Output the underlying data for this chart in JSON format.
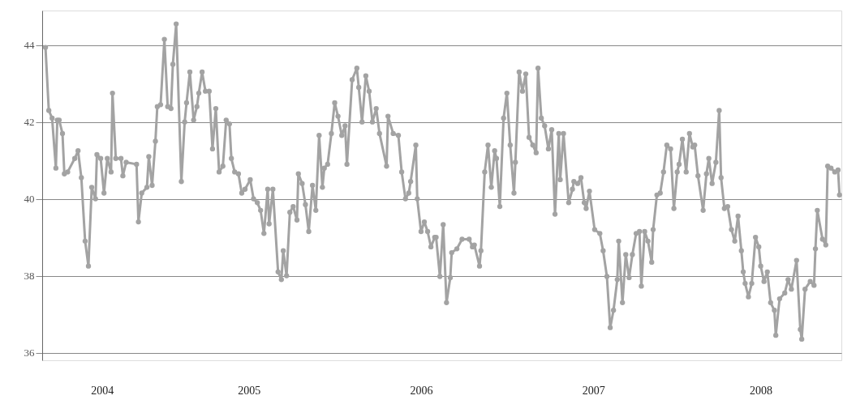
{
  "chart_data": {
    "type": "line",
    "x": [
      "2004-04-28",
      "2004-05-05",
      "2004-05-12",
      "2004-05-20",
      "2004-05-23",
      "2004-05-27",
      "2004-06-03",
      "2004-06-07",
      "2004-06-14",
      "2004-06-29",
      "2004-07-06",
      "2004-07-13",
      "2004-07-21",
      "2004-07-28",
      "2004-08-04",
      "2004-08-12",
      "2004-08-15",
      "2004-08-23",
      "2004-08-30",
      "2004-09-06",
      "2004-09-14",
      "2004-09-17",
      "2004-09-24",
      "2004-10-05",
      "2004-10-09",
      "2004-10-16",
      "2004-11-07",
      "2004-11-11",
      "2004-11-18",
      "2004-11-29",
      "2004-12-03",
      "2004-12-10",
      "2004-12-17",
      "2004-12-21",
      "2004-12-28",
      "2005-01-05",
      "2005-01-12",
      "2005-01-19",
      "2005-01-23",
      "2005-01-30",
      "2005-02-10",
      "2005-02-17",
      "2005-02-21",
      "2005-02-28",
      "2005-03-08",
      "2005-03-15",
      "2005-03-19",
      "2005-03-26",
      "2005-04-02",
      "2005-04-10",
      "2005-04-17",
      "2005-04-24",
      "2005-05-01",
      "2005-05-09",
      "2005-05-16",
      "2005-05-23",
      "2005-05-27",
      "2005-06-03",
      "2005-06-11",
      "2005-06-18",
      "2005-06-25",
      "2005-07-06",
      "2005-07-13",
      "2005-07-21",
      "2005-07-28",
      "2005-08-04",
      "2005-08-12",
      "2005-08-15",
      "2005-08-23",
      "2005-09-03",
      "2005-09-10",
      "2005-09-14",
      "2005-09-21",
      "2005-09-28",
      "2005-10-05",
      "2005-10-13",
      "2005-10-16",
      "2005-10-24",
      "2005-10-31",
      "2005-11-07",
      "2005-11-15",
      "2005-11-22",
      "2005-11-29",
      "2005-12-06",
      "2005-12-10",
      "2005-12-17",
      "2005-12-25",
      "2006-01-01",
      "2006-01-08",
      "2006-01-16",
      "2006-01-23",
      "2006-01-27",
      "2006-02-07",
      "2006-02-17",
      "2006-02-21",
      "2006-02-28",
      "2006-03-08",
      "2006-03-15",
      "2006-03-22",
      "2006-03-30",
      "2006-04-06",
      "2006-04-21",
      "2006-04-24",
      "2006-05-05",
      "2006-05-16",
      "2006-05-23",
      "2006-05-31",
      "2006-06-07",
      "2006-06-11",
      "2006-06-22",
      "2006-06-25",
      "2006-07-03",
      "2006-07-10",
      "2006-07-17",
      "2006-07-24",
      "2006-08-01",
      "2006-08-04",
      "2006-08-12",
      "2006-08-19",
      "2006-08-26",
      "2006-09-03",
      "2006-09-06",
      "2006-09-17",
      "2006-09-28",
      "2006-10-13",
      "2006-10-20",
      "2006-10-24",
      "2006-11-04",
      "2006-11-07",
      "2006-11-15",
      "2006-11-22",
      "2006-11-29",
      "2006-12-06",
      "2006-12-10",
      "2006-12-17",
      "2006-12-25",
      "2007-01-01",
      "2007-01-08",
      "2007-01-16",
      "2007-01-19",
      "2007-01-27",
      "2007-02-03",
      "2007-02-10",
      "2007-02-17",
      "2007-02-25",
      "2007-03-04",
      "2007-03-08",
      "2007-03-15",
      "2007-03-22",
      "2007-03-30",
      "2007-04-06",
      "2007-04-13",
      "2007-04-21",
      "2007-04-24",
      "2007-05-01",
      "2007-05-12",
      "2007-05-20",
      "2007-05-23",
      "2007-05-31",
      "2007-06-07",
      "2007-06-14",
      "2007-06-18",
      "2007-06-25",
      "2007-07-06",
      "2007-07-17",
      "2007-07-24",
      "2007-08-01",
      "2007-08-08",
      "2007-08-15",
      "2007-08-23",
      "2007-08-26",
      "2007-09-03",
      "2007-09-10",
      "2007-09-17",
      "2007-09-24",
      "2007-10-02",
      "2007-10-09",
      "2007-10-13",
      "2007-10-20",
      "2007-10-27",
      "2007-11-04",
      "2007-11-07",
      "2007-11-15",
      "2007-11-22",
      "2007-11-29",
      "2007-12-06",
      "2007-12-14",
      "2007-12-21",
      "2007-12-28",
      "2008-01-01",
      "2008-01-08",
      "2008-01-16",
      "2008-01-23",
      "2008-01-30",
      "2008-02-03",
      "2008-02-10",
      "2008-02-21",
      "2008-02-28",
      "2008-03-04",
      "2008-03-11",
      "2008-03-19",
      "2008-03-26",
      "2008-03-30",
      "2008-04-06",
      "2008-04-13",
      "2008-04-21",
      "2008-04-28",
      "2008-05-05",
      "2008-05-12",
      "2008-05-16",
      "2008-05-20",
      "2008-05-27",
      "2008-06-03",
      "2008-06-11",
      "2008-06-18",
      "2008-06-22",
      "2008-06-29",
      "2008-07-06",
      "2008-07-13",
      "2008-07-21",
      "2008-07-24",
      "2008-08-01",
      "2008-08-12",
      "2008-08-19",
      "2008-08-26",
      "2008-09-06",
      "2008-09-14",
      "2008-09-17",
      "2008-09-24",
      "2008-10-05",
      "2008-10-13",
      "2008-10-16",
      "2008-10-20",
      "2008-10-31",
      "2008-11-07",
      "2008-11-11",
      "2008-11-18",
      "2008-11-26",
      "2008-12-03",
      "2008-12-06"
    ],
    "series": [
      {
        "color": "#a3a3a3",
        "values": [
          43.94,
          42.3,
          42.1,
          40.8,
          42.05,
          42.05,
          41.7,
          40.65,
          40.7,
          41.05,
          41.25,
          40.55,
          38.9,
          38.25,
          40.3,
          40.0,
          41.15,
          41.05,
          40.15,
          41.05,
          40.7,
          42.75,
          41.05,
          41.05,
          40.6,
          40.95,
          40.9,
          39.4,
          40.15,
          40.3,
          41.1,
          40.35,
          41.5,
          42.4,
          42.45,
          44.15,
          42.4,
          42.35,
          43.5,
          44.55,
          40.45,
          42.0,
          42.5,
          43.3,
          42.05,
          42.4,
          42.75,
          43.3,
          42.8,
          42.8,
          41.3,
          42.35,
          40.7,
          40.85,
          42.05,
          41.95,
          41.05,
          40.7,
          40.65,
          40.15,
          40.25,
          40.5,
          40.0,
          39.9,
          39.7,
          39.1,
          40.25,
          39.35,
          40.25,
          38.1,
          37.9,
          38.65,
          38.0,
          39.65,
          39.8,
          39.45,
          40.65,
          40.4,
          39.85,
          39.15,
          40.35,
          39.7,
          41.65,
          40.3,
          40.8,
          40.9,
          41.7,
          42.5,
          42.15,
          41.65,
          41.9,
          40.9,
          43.1,
          43.4,
          42.9,
          42.0,
          43.2,
          42.8,
          42.0,
          42.35,
          41.7,
          40.85,
          42.15,
          41.7,
          41.65,
          40.7,
          40.0,
          40.15,
          40.45,
          41.4,
          40.0,
          39.15,
          39.4,
          39.15,
          38.75,
          39.0,
          39.0,
          37.98,
          39.33,
          37.3,
          37.95,
          38.6,
          38.7,
          38.95,
          38.95,
          38.75,
          38.8,
          38.25,
          38.65,
          40.7,
          41.4,
          40.3,
          41.25,
          41.05,
          39.8,
          42.1,
          42.75,
          41.4,
          40.15,
          40.95,
          43.3,
          42.8,
          43.25,
          41.6,
          41.4,
          41.2,
          43.4,
          42.1,
          41.9,
          41.3,
          41.8,
          39.6,
          41.7,
          40.5,
          41.7,
          39.9,
          40.25,
          40.45,
          40.4,
          40.55,
          39.9,
          39.75,
          40.2,
          39.2,
          39.1,
          38.65,
          37.98,
          36.65,
          37.1,
          37.9,
          38.9,
          37.3,
          38.55,
          37.95,
          38.55,
          39.1,
          39.15,
          37.73,
          39.15,
          38.9,
          38.35,
          39.2,
          40.1,
          40.15,
          40.7,
          41.4,
          41.3,
          39.75,
          40.7,
          40.9,
          41.55,
          40.7,
          41.7,
          41.35,
          41.4,
          40.6,
          39.7,
          40.65,
          41.05,
          40.4,
          40.95,
          42.3,
          40.55,
          39.75,
          39.8,
          39.2,
          38.9,
          39.55,
          38.65,
          38.1,
          37.8,
          37.45,
          37.8,
          39.0,
          38.75,
          38.25,
          37.85,
          38.1,
          37.3,
          37.1,
          36.45,
          37.4,
          37.55,
          37.9,
          37.65,
          38.4,
          36.6,
          36.35,
          37.65,
          37.85,
          37.75,
          38.7,
          39.7,
          38.95,
          38.8,
          40.85,
          40.8,
          40.7,
          40.75,
          40.1
        ]
      }
    ],
    "xlim": [
      "2004-04-21",
      "2008-12-10"
    ],
    "xticks": [
      {
        "value": "2004-08-26",
        "label": "2004"
      },
      {
        "value": "2005-07-03",
        "label": "2005"
      },
      {
        "value": "2006-07-03",
        "label": "2006"
      },
      {
        "value": "2007-07-03",
        "label": "2007"
      },
      {
        "value": "2008-06-22",
        "label": "2008"
      }
    ],
    "ylim": [
      35.8,
      44.9
    ],
    "yticks": [
      36,
      38,
      40,
      42,
      44
    ],
    "grid": "y",
    "marker": "circle",
    "line_style": "solid"
  }
}
